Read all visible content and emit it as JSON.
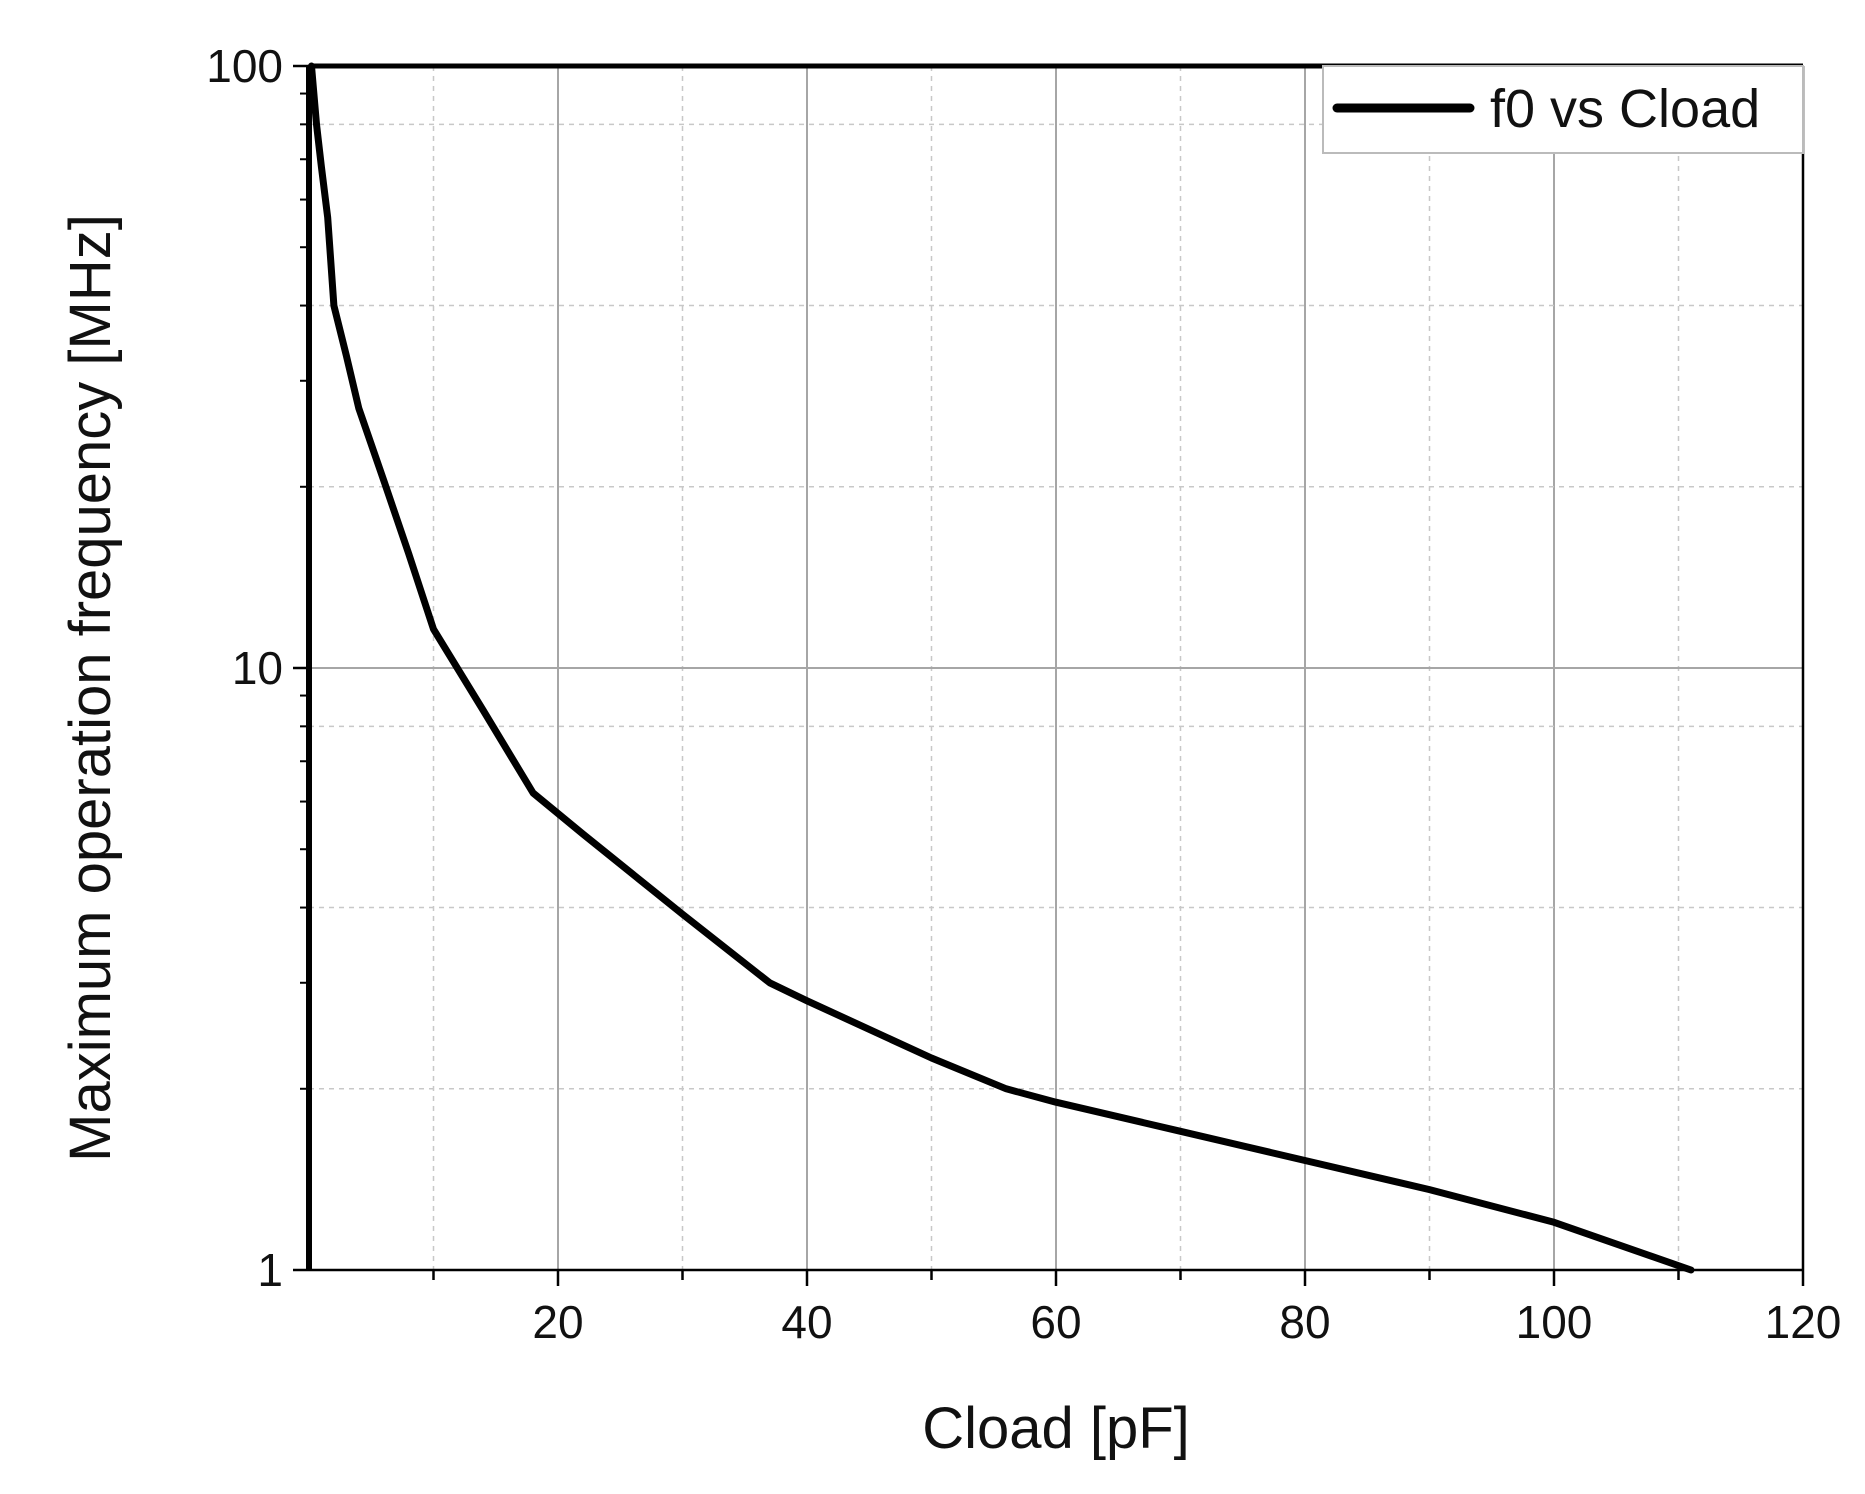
{
  "chart_data": {
    "type": "line",
    "title": "",
    "xlabel": "Cload [pF]",
    "ylabel": "Maximum operation frequency [MHz]",
    "xlim": [
      0,
      120
    ],
    "ylim": [
      1,
      100
    ],
    "yscale": "log",
    "grid": true,
    "legend_position": "top-right",
    "x_ticks": [
      20,
      40,
      60,
      80,
      100,
      120
    ],
    "x_tick_labels": [
      "20",
      "40",
      "60",
      "80",
      "100",
      "120"
    ],
    "y_ticks": [
      1,
      10,
      100
    ],
    "y_tick_labels": [
      "1",
      "10",
      "100"
    ],
    "series": [
      {
        "name": "f0 vs Cload",
        "color": "#000000",
        "x": [
          0.2,
          0.6,
          1.0,
          1.5,
          2.0,
          3.0,
          4.0,
          6.0,
          8.0,
          10.0,
          14.0,
          18.0,
          22.0,
          30.0,
          37.0,
          40.0,
          50.0,
          56.0,
          60.0,
          70.0,
          80.0,
          90.0,
          100.0,
          111.0
        ],
        "y": [
          100,
          80,
          68,
          56,
          40,
          33,
          27,
          20.5,
          15.5,
          11.6,
          8.5,
          6.2,
          5.3,
          3.9,
          3.0,
          2.8,
          2.25,
          2.0,
          1.9,
          1.7,
          1.52,
          1.36,
          1.2,
          1.0
        ]
      }
    ]
  }
}
